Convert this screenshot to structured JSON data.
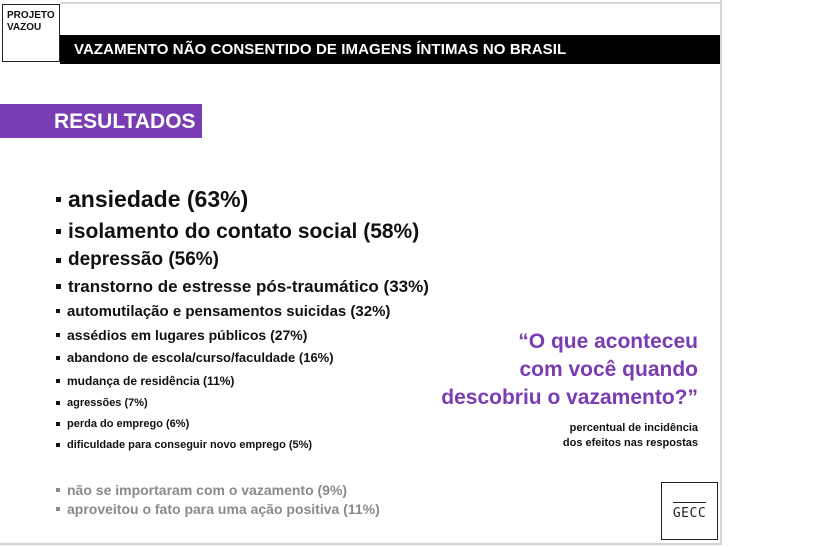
{
  "logo": {
    "line1": "PROJETO",
    "line2": "VAZOU"
  },
  "header": {
    "title": "VAZAMENTO NÃO CONSENTIDO DE IMAGENS ÍNTIMAS NO BRASIL"
  },
  "section": {
    "label": "RESULTADOS"
  },
  "results": [
    "ansiedade (63%)",
    "isolamento do contato social (58%)",
    "depressão (56%)",
    "transtorno de estresse pós-traumático (33%)",
    "automutilação e pensamentos suicidas (32%)",
    "assédios em lugares públicos (27%)",
    "abandono de escola/curso/faculdade (16%)",
    "mudança de residência (11%)",
    "agressões (7%)",
    "perda do emprego (6%)",
    "dificuldade para conseguir novo emprego (5%)"
  ],
  "other_results": [
    "não se importaram com o vazamento (9%)",
    "aproveitou o fato para uma ação positiva (11%)"
  ],
  "quote": {
    "line1": "“O que aconteceu",
    "line2": "com você quando",
    "line3": "descobriu o vazamento?”"
  },
  "caption": {
    "line1": "percentual de incidência",
    "line2": "dos efeitos nas respostas"
  },
  "footer_logo": {
    "text": "GECC"
  },
  "colors": {
    "accent": "#7a3cb2",
    "title_bar": "#000000",
    "muted_text": "#8a8a8a"
  }
}
